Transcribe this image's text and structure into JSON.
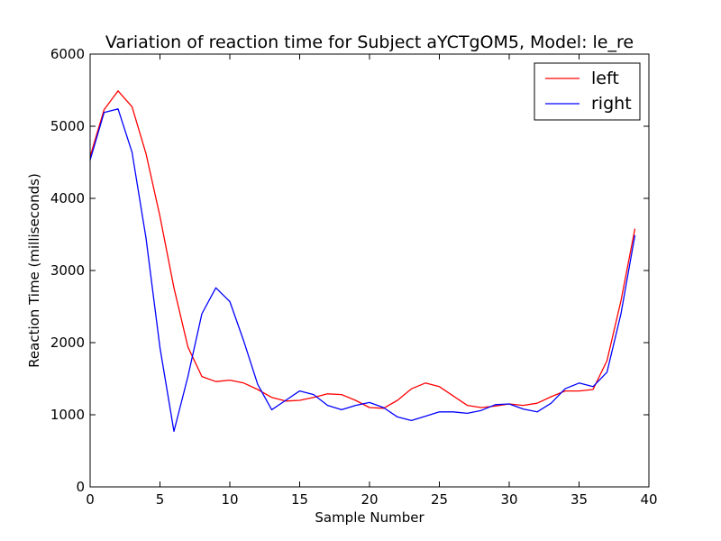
{
  "chart_data": {
    "type": "line",
    "title": "Variation of reaction time for Subject aYCTgOM5, Model: le_re",
    "xlabel": "Sample Number",
    "ylabel": "Reaction Time (milliseconds)",
    "xlim": [
      0,
      40
    ],
    "ylim": [
      0,
      6000
    ],
    "x_ticks": [
      0,
      5,
      10,
      15,
      20,
      25,
      30,
      35,
      40
    ],
    "y_ticks": [
      0,
      1000,
      2000,
      3000,
      4000,
      5000,
      6000
    ],
    "grid": false,
    "legend_position": "top-right",
    "series": [
      {
        "name": "left",
        "color": "#ff0000",
        "x": [
          0,
          1,
          2,
          3,
          4,
          5,
          6,
          7,
          8,
          9,
          10,
          11,
          12,
          13,
          14,
          15,
          16,
          17,
          18,
          19,
          20,
          21,
          22,
          23,
          24,
          25,
          26,
          27,
          28,
          29,
          30,
          31,
          32,
          33,
          34,
          35,
          36,
          37,
          38,
          39
        ],
        "y": [
          4580,
          5230,
          5490,
          5270,
          4620,
          3750,
          2760,
          1940,
          1530,
          1460,
          1480,
          1440,
          1350,
          1240,
          1190,
          1200,
          1240,
          1290,
          1280,
          1200,
          1100,
          1090,
          1200,
          1360,
          1440,
          1390,
          1260,
          1130,
          1100,
          1120,
          1150,
          1130,
          1160,
          1250,
          1330,
          1330,
          1350,
          1750,
          2580,
          3580
        ]
      },
      {
        "name": "right",
        "color": "#0000ff",
        "x": [
          0,
          1,
          2,
          3,
          4,
          5,
          6,
          7,
          8,
          9,
          10,
          11,
          12,
          13,
          14,
          15,
          16,
          17,
          18,
          19,
          20,
          21,
          22,
          23,
          24,
          25,
          26,
          27,
          28,
          29,
          30,
          31,
          32,
          33,
          34,
          35,
          36,
          37,
          38,
          39
        ],
        "y": [
          4530,
          5190,
          5240,
          4640,
          3450,
          1930,
          770,
          1530,
          2400,
          2760,
          2570,
          2020,
          1420,
          1070,
          1200,
          1330,
          1280,
          1130,
          1070,
          1130,
          1170,
          1100,
          970,
          920,
          980,
          1040,
          1040,
          1020,
          1060,
          1140,
          1150,
          1080,
          1040,
          1160,
          1360,
          1440,
          1390,
          1590,
          2400,
          3490
        ]
      }
    ]
  }
}
